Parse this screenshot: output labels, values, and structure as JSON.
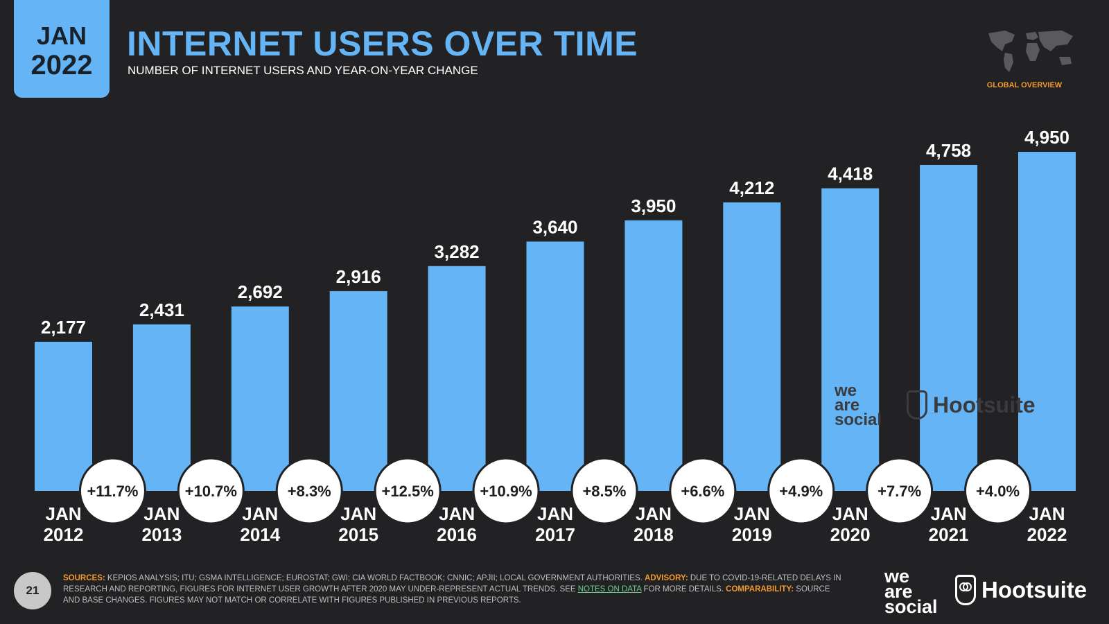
{
  "badge": {
    "month": "JAN",
    "year": "2022"
  },
  "header": {
    "title": "INTERNET USERS OVER TIME",
    "subtitle": "NUMBER OF INTERNET USERS AND YEAR-ON-YEAR CHANGE"
  },
  "region_label": "GLOBAL OVERVIEW",
  "colors": {
    "bar": "#64b4f6",
    "background": "#222224",
    "accent": "#f29a2e"
  },
  "chart_data": {
    "type": "bar",
    "categories": [
      "JAN 2012",
      "JAN 2013",
      "JAN 2014",
      "JAN 2015",
      "JAN 2016",
      "JAN 2017",
      "JAN 2018",
      "JAN 2019",
      "JAN 2020",
      "JAN 2021",
      "JAN 2022"
    ],
    "category_lines": [
      [
        "JAN",
        "2012"
      ],
      [
        "JAN",
        "2013"
      ],
      [
        "JAN",
        "2014"
      ],
      [
        "JAN",
        "2015"
      ],
      [
        "JAN",
        "2016"
      ],
      [
        "JAN",
        "2017"
      ],
      [
        "JAN",
        "2018"
      ],
      [
        "JAN",
        "2019"
      ],
      [
        "JAN",
        "2020"
      ],
      [
        "JAN",
        "2021"
      ],
      [
        "JAN",
        "2022"
      ]
    ],
    "values": [
      2177,
      2431,
      2692,
      2916,
      3282,
      3640,
      3950,
      4212,
      4418,
      4758,
      4950
    ],
    "value_labels": [
      "2,177",
      "2,431",
      "2,692",
      "2,916",
      "3,282",
      "3,640",
      "3,950",
      "4,212",
      "4,418",
      "4,758",
      "4,950"
    ],
    "yoy_change": [
      "+11.7%",
      "+10.7%",
      "+8.3%",
      "+12.5%",
      "+10.9%",
      "+8.5%",
      "+6.6%",
      "+4.9%",
      "+7.7%",
      "+4.0%"
    ],
    "ylim": [
      0,
      5000
    ],
    "grid": false,
    "xlabel": "",
    "ylabel": ""
  },
  "watermarks": {
    "wearesocial": [
      "we",
      "are",
      "social"
    ],
    "hootsuite": "Hootsuite"
  },
  "footer": {
    "page_number": "21",
    "sources_key": "SOURCES:",
    "sources_text": " KEPIOS ANALYSIS; ITU; GSMA INTELLIGENCE; EUROSTAT; GWI; CIA WORLD FACTBOOK; CNNIC; APJII; LOCAL GOVERNMENT AUTHORITIES. ",
    "advisory_key": "ADVISORY:",
    "advisory_text": " DUE TO COVID-19-RELATED DELAYS IN RESEARCH AND REPORTING, FIGURES FOR INTERNET USER GROWTH AFTER 2020 MAY UNDER-REPRESENT ACTUAL TRENDS. SEE ",
    "notes_link": "NOTES ON DATA",
    "notes_after": " FOR MORE DETAILS. ",
    "comparability_key": "COMPARABILITY:",
    "comparability_text": " SOURCE AND BASE CHANGES. FIGURES MAY NOT MATCH OR CORRELATE WITH FIGURES PUBLISHED IN PREVIOUS REPORTS."
  },
  "logos": {
    "wearesocial": [
      "we",
      "are",
      "social"
    ],
    "hootsuite": "Hootsuite"
  }
}
